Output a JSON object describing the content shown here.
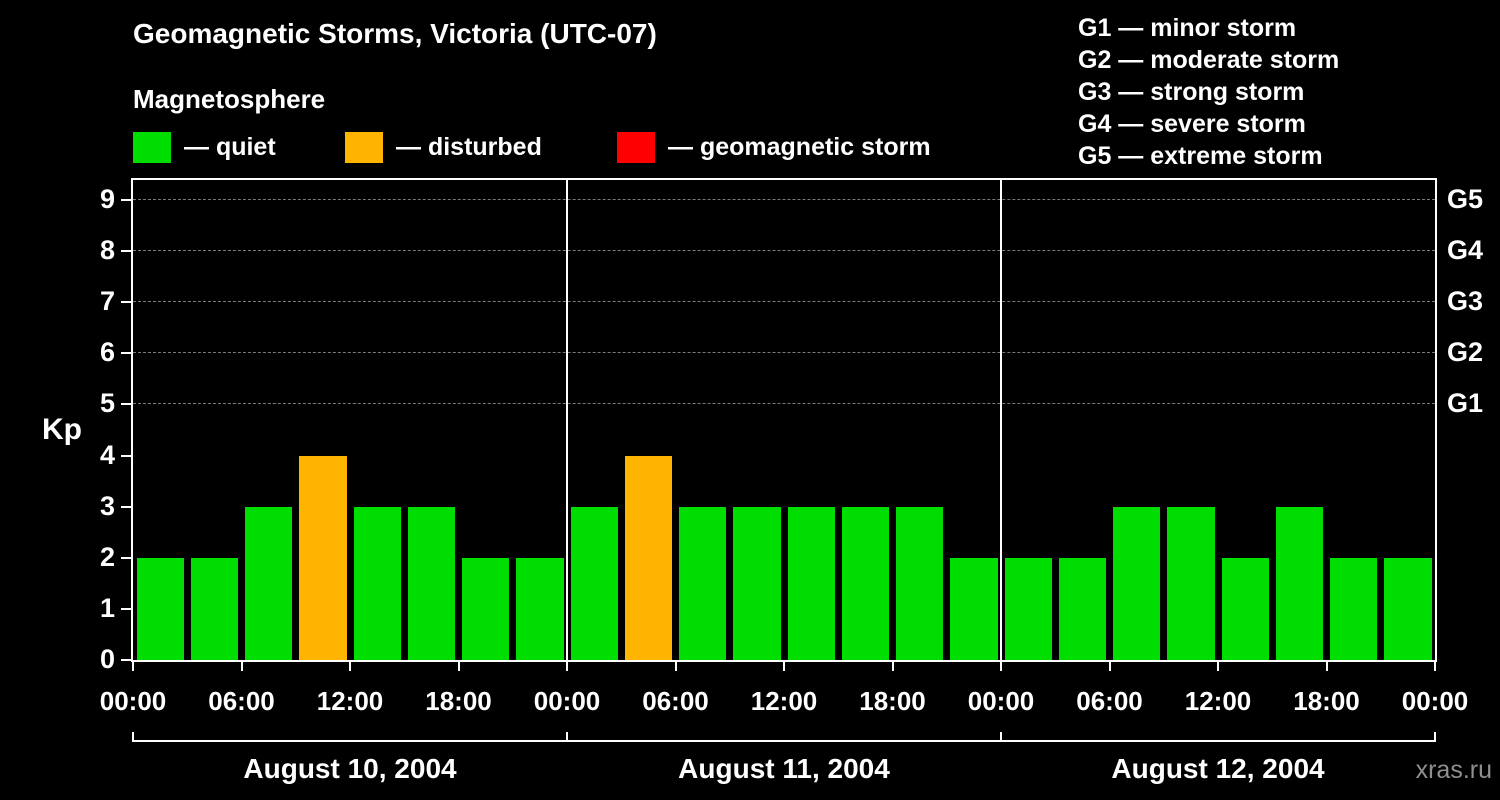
{
  "header": {
    "title": "Geomagnetic Storms, Victoria (UTC-07)",
    "subtitle": "Magnetosphere"
  },
  "condition_legend": [
    {
      "name": "quiet",
      "label": "— quiet",
      "color": "#00dd00"
    },
    {
      "name": "disturbed",
      "label": "— disturbed",
      "color": "#ffb400"
    },
    {
      "name": "storm",
      "label": "— geomagnetic storm",
      "color": "#ff0000"
    }
  ],
  "storm_scale_legend": [
    "G1 — minor storm",
    "G2 — moderate storm",
    "G3 — strong storm",
    "G4 — severe storm",
    "G5 — extreme storm"
  ],
  "watermark": "xras.ru",
  "chart_data": {
    "type": "bar",
    "title": "Geomagnetic Storms, Victoria (UTC-07)",
    "xlabel": "",
    "ylabel": "Kp",
    "ylim": [
      0,
      9.4
    ],
    "y_ticks": [
      0,
      1,
      2,
      3,
      4,
      5,
      6,
      7,
      8,
      9
    ],
    "gridlines_kp": [
      5,
      6,
      7,
      8,
      9
    ],
    "right_axis_labels": [
      {
        "kp": 5,
        "label": "G1"
      },
      {
        "kp": 6,
        "label": "G2"
      },
      {
        "kp": 7,
        "label": "G3"
      },
      {
        "kp": 8,
        "label": "G4"
      },
      {
        "kp": 9,
        "label": "G5"
      }
    ],
    "x_tick_labels": [
      "00:00",
      "06:00",
      "12:00",
      "18:00",
      "00:00",
      "06:00",
      "12:00",
      "18:00",
      "00:00",
      "06:00",
      "12:00",
      "18:00",
      "00:00"
    ],
    "bar_interval_hours": 3,
    "days": [
      {
        "label": "August 10, 2004",
        "kp": [
          2,
          2,
          3,
          4,
          3,
          3,
          2,
          2
        ]
      },
      {
        "label": "August 11, 2004",
        "kp": [
          3,
          4,
          3,
          3,
          3,
          3,
          3,
          2
        ]
      },
      {
        "label": "August 12, 2004",
        "kp": [
          2,
          2,
          3,
          3,
          2,
          3,
          2,
          2
        ]
      }
    ],
    "color_rules": {
      "quiet_max_kp": 3,
      "disturbed_max_kp": 4,
      "quiet_color": "#00dd00",
      "disturbed_color": "#ffb400",
      "storm_color": "#ff0000"
    }
  }
}
